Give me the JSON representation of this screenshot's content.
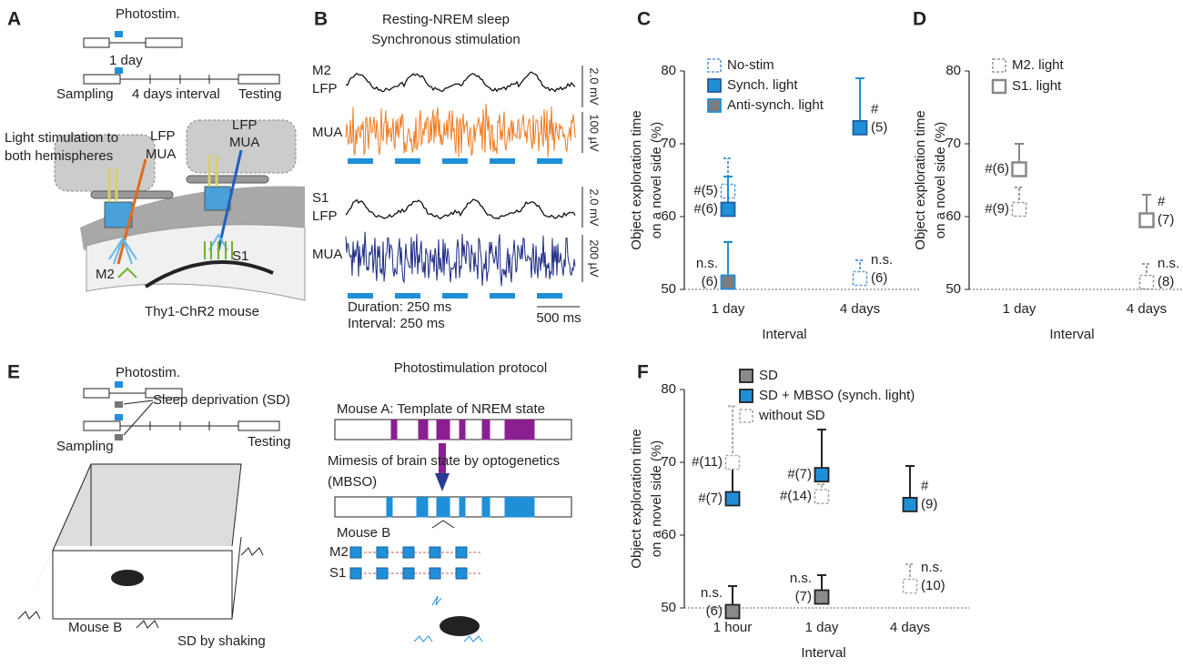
{
  "panels": {
    "a": {
      "letter": "A",
      "photostim": "Photostim.",
      "one_day": "1 day",
      "sampling": "Sampling",
      "interval": "4 days interval",
      "testing": "Testing",
      "light_1": "Light stimulation to",
      "light_2": "both hemispheres",
      "lfp_1": "LFP",
      "mua_1": "MUA",
      "lfp_2": "LFP",
      "mua_2": "MUA",
      "m2": "M2",
      "s1": "S1",
      "mouse": "Thy1-ChR2 mouse"
    },
    "b": {
      "letter": "B",
      "title_1": "Resting-NREM sleep",
      "title_2": "Synchronous stimulation",
      "m2": "M2",
      "m2_lfp": "LFP",
      "m2_mua": "MUA",
      "s1": "S1",
      "s1_lfp": "LFP",
      "s1_mua": "MUA",
      "scale_1": "2.0 mV",
      "scale_2": "100 µV",
      "scale_3": "2.0 mV",
      "scale_4": "200 µV",
      "duration": "Duration: 250 ms",
      "interval": "Interval: 250 ms",
      "time_scale": "500 ms"
    },
    "e": {
      "letter": "E",
      "photostim": "Photostim.",
      "sd": "Sleep deprivation (SD)",
      "sampling": "Sampling",
      "testing": "Testing",
      "mouse_b": "Mouse B",
      "shaking": "SD by shaking",
      "protocol": "Photostimulation protocol",
      "template": "Mouse A: Template of NREM state",
      "mimesis_1": "Mimesis of brain state by optogenetics",
      "mimesis_2": "(MBSO)",
      "mouse_b2": "Mouse B",
      "m2": "M2",
      "s1": "S1"
    }
  },
  "chart_data": [
    {
      "type": "point",
      "panel": "C",
      "categories": [
        "1 day",
        "4 days"
      ],
      "xlabel": "Interval",
      "ylabel": [
        "Object exploration time",
        "on a novel side (%)"
      ],
      "ylim": [
        50,
        80
      ],
      "yticks": [
        50,
        60,
        70,
        80
      ],
      "series": [
        {
          "name": "No-stim",
          "style": "dashed",
          "color": "#5b9bd5",
          "edge": "#5b9bd5",
          "values": [
            63.5,
            51.5
          ],
          "errors": [
            4.5,
            2.5
          ],
          "labels": [
            [
              "#(5)"
            ],
            [
              "n.s.",
              "(6)"
            ]
          ]
        },
        {
          "name": "Synch. light",
          "style": "filled",
          "color": "#1f8fd8",
          "edge": "#1f5fa0",
          "values": [
            61,
            72.2
          ],
          "errors": [
            4.5,
            6.8
          ],
          "labels": [
            [
              "#(6)"
            ],
            [
              "#",
              "(5)"
            ]
          ]
        },
        {
          "name": "Anti-synch. light",
          "style": "filled",
          "color": "#7d7d7d",
          "edge": "#1f8fd8",
          "values": [
            51,
            null
          ],
          "errors": [
            5.5,
            null
          ],
          "labels": [
            [
              "n.s.",
              "(6)"
            ],
            null
          ]
        }
      ]
    },
    {
      "type": "point",
      "panel": "D",
      "categories": [
        "1 day",
        "4 days"
      ],
      "xlabel": "Interval",
      "ylabel": [
        "Object exploration time",
        "on a novel side (%)"
      ],
      "ylim": [
        50,
        80
      ],
      "yticks": [
        50,
        60,
        70,
        80
      ],
      "series": [
        {
          "name": "M2. light",
          "style": "dashed",
          "color": "#999999",
          "edge": "#999999",
          "values": [
            61,
            51
          ],
          "errors": [
            3,
            2.5
          ],
          "labels": [
            [
              "#(9)"
            ],
            [
              "n.s.",
              "(8)"
            ]
          ]
        },
        {
          "name": "S1. light",
          "style": "outline",
          "color": "#888888",
          "edge": "#888888",
          "values": [
            66.5,
            59.5
          ],
          "errors": [
            3.5,
            3.5
          ],
          "labels": [
            [
              "#(6)"
            ],
            [
              "#",
              "(7)"
            ]
          ]
        }
      ]
    },
    {
      "type": "point",
      "panel": "F",
      "categories": [
        "1 hour",
        "1 day",
        "4 days"
      ],
      "xlabel": "Interval",
      "ylabel": [
        "Object exploration time",
        "on a novel side (%)"
      ],
      "ylim": [
        50,
        80
      ],
      "yticks": [
        50,
        60,
        70,
        80
      ],
      "series": [
        {
          "name": "SD",
          "style": "filled",
          "color": "#8a8a8a",
          "edge": "#222222",
          "values": [
            49.5,
            51.5,
            null
          ],
          "errors": [
            3.5,
            3,
            null
          ],
          "labels": [
            [
              "n.s.",
              "(6)"
            ],
            [
              "n.s.",
              "(7)"
            ],
            null
          ]
        },
        {
          "name": "SD + MBSO (synch. light)",
          "style": "filled",
          "color": "#1f8fd8",
          "edge": "#222222",
          "values": [
            65,
            68.3,
            64.2
          ],
          "errors": [
            4.5,
            6.2,
            5.3
          ],
          "labels": [
            [
              "#(7)"
            ],
            [
              "#(7)"
            ],
            [
              "#",
              "(9)"
            ]
          ]
        },
        {
          "name": "without SD",
          "style": "dashed",
          "color": "#aaaaaa",
          "edge": "#aaaaaa",
          "values": [
            70,
            65.3,
            53
          ],
          "errors": [
            7.7,
            1.7,
            3
          ],
          "labels": [
            [
              "#(11)"
            ],
            [
              "#(14)"
            ],
            [
              "n.s.",
              "(10)"
            ]
          ]
        }
      ]
    }
  ]
}
